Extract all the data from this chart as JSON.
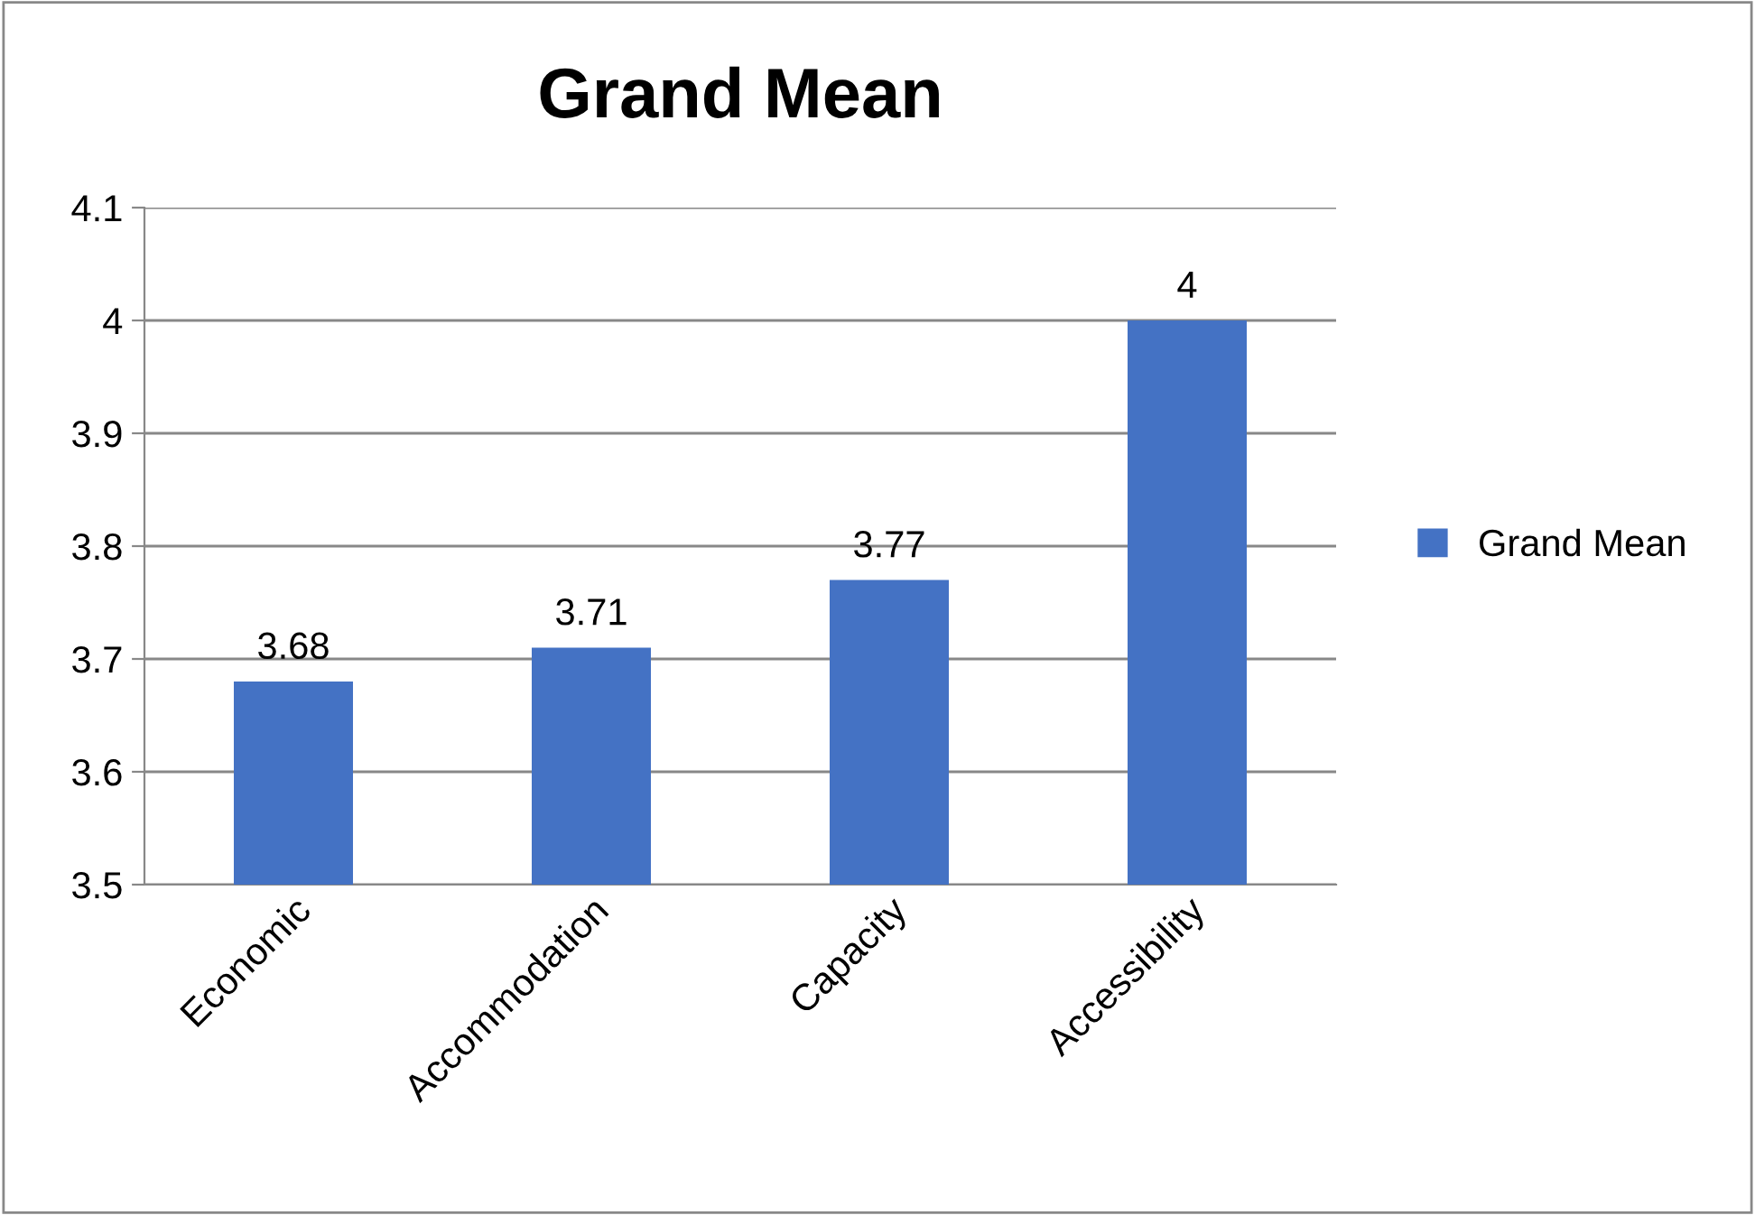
{
  "chart_data": {
    "type": "bar",
    "title": "Grand Mean",
    "categories": [
      "Economic",
      "Accommodation",
      "Capacity",
      "Accessibility"
    ],
    "series": [
      {
        "name": "Grand Mean",
        "color": "#4472c4",
        "values": [
          3.68,
          3.71,
          3.77,
          4
        ]
      }
    ],
    "ylim": [
      3.5,
      4.1
    ],
    "yticks": [
      3.5,
      3.6,
      3.7,
      3.8,
      3.9,
      4,
      4.1
    ],
    "grid": "y",
    "legend": "right",
    "data_labels": true
  }
}
